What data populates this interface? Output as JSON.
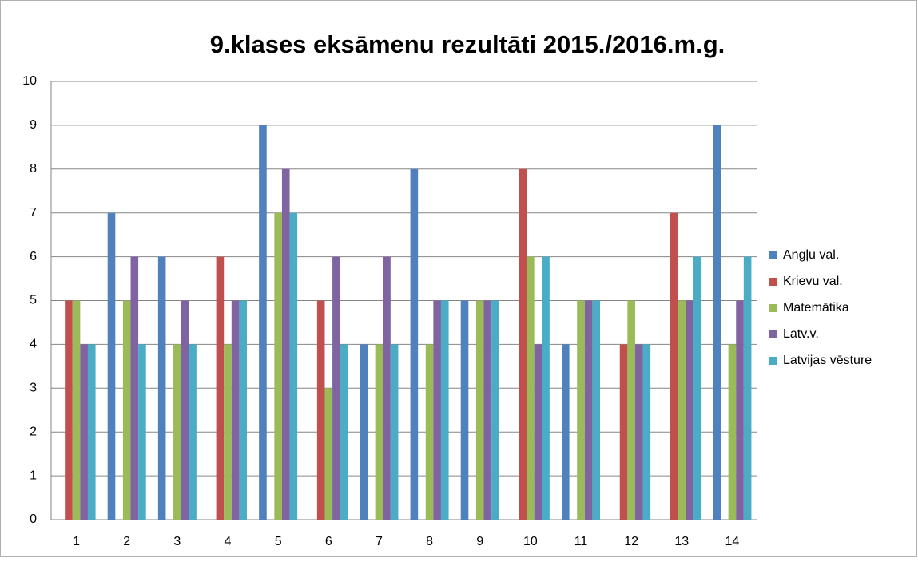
{
  "chart_data": {
    "type": "bar",
    "title": "9.klases eksāmenu rezultāti 2015./2016.m.g.",
    "categories": [
      "1",
      "2",
      "3",
      "4",
      "5",
      "6",
      "7",
      "8",
      "9",
      "10",
      "11",
      "12",
      "13",
      "14"
    ],
    "series": [
      {
        "name": "Angļu val.",
        "color": "#4f81bd",
        "values": [
          null,
          7,
          6,
          null,
          9,
          null,
          4,
          8,
          5,
          null,
          4,
          null,
          null,
          9
        ]
      },
      {
        "name": "Krievu val.",
        "color": "#c0504d",
        "values": [
          5,
          null,
          null,
          6,
          null,
          5,
          null,
          null,
          null,
          8,
          null,
          4,
          7,
          null
        ]
      },
      {
        "name": "Matemātika",
        "color": "#9bbb59",
        "values": [
          5,
          5,
          4,
          4,
          7,
          3,
          4,
          4,
          5,
          6,
          5,
          5,
          5,
          4
        ]
      },
      {
        "name": "Latv.v.",
        "color": "#8064a2",
        "values": [
          4,
          6,
          5,
          5,
          8,
          6,
          6,
          5,
          5,
          4,
          5,
          4,
          5,
          5
        ]
      },
      {
        "name": "Latvijas vēsture",
        "color": "#4bacc6",
        "values": [
          4,
          4,
          4,
          5,
          7,
          4,
          4,
          5,
          5,
          6,
          5,
          4,
          6,
          6
        ]
      }
    ],
    "ylim": [
      0,
      10
    ],
    "yticks": [
      0,
      1,
      2,
      3,
      4,
      5,
      6,
      7,
      8,
      9,
      10
    ],
    "grid": true,
    "legend": "right"
  }
}
